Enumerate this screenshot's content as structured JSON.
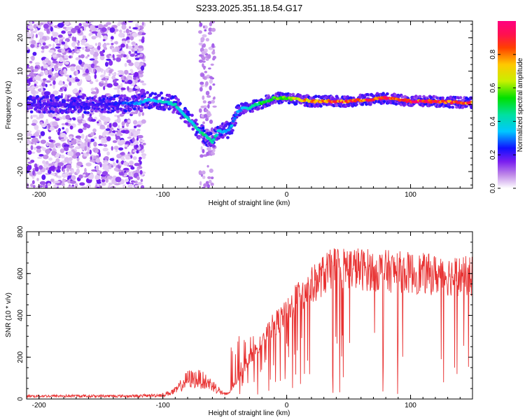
{
  "figure": {
    "title": "S233.2025.351.18.54.G17"
  },
  "chart_data": [
    {
      "type": "heatmap",
      "title": "S233.2025.351.18.54.G17",
      "xlabel": "Height of straight line (km)",
      "ylabel": "Frequency (Hz)",
      "xlim": [
        -210,
        150
      ],
      "ylim": [
        -25,
        25
      ],
      "xticks": [
        -200,
        -100,
        0,
        100
      ],
      "yticks": [
        -20,
        -10,
        0,
        10,
        20
      ],
      "ridge": {
        "description_free": true,
        "x": [
          -210,
          -150,
          -120,
          -110,
          -100,
          -90,
          -80,
          -70,
          -60,
          -55,
          -50,
          -45,
          -40,
          -35,
          -30,
          -25,
          -20,
          -10,
          0,
          20,
          50,
          80,
          100,
          120,
          150
        ],
        "y": [
          0,
          0,
          0.5,
          1.5,
          1,
          0,
          -4,
          -8,
          -11,
          -8,
          -8,
          -7,
          -2,
          -1,
          -1,
          0,
          0.5,
          2,
          2,
          1,
          1,
          2,
          1,
          1,
          0.5
        ],
        "amplitude": [
          0.2,
          0.2,
          0.3,
          0.35,
          0.4,
          0.4,
          0.4,
          0.45,
          0.45,
          0.4,
          0.35,
          0.35,
          0.3,
          0.35,
          0.4,
          0.45,
          0.5,
          0.55,
          0.6,
          0.8,
          0.85,
          0.9,
          0.9,
          0.9,
          0.85
        ]
      },
      "colorbar": {
        "label": "Normalized spectral amplitude",
        "ticks": [
          0.0,
          0.2,
          0.4,
          0.6,
          0.8
        ],
        "range": [
          0,
          1
        ]
      }
    },
    {
      "type": "line",
      "xlabel": "Height of straight line (km)",
      "ylabel": "SNR (10 * v/v)",
      "xlim": [
        -210,
        150
      ],
      "ylim": [
        0,
        800
      ],
      "xticks": [
        -200,
        -100,
        0,
        100
      ],
      "yticks": [
        0,
        200,
        400,
        600,
        800
      ],
      "color": "#e83232",
      "envelope": {
        "x": [
          -210,
          -120,
          -100,
          -90,
          -80,
          -70,
          -60,
          -50,
          -45,
          -40,
          -30,
          -20,
          -10,
          0,
          10,
          20,
          30,
          40,
          50,
          60,
          80,
          100,
          120,
          150
        ],
        "y": [
          15,
          15,
          20,
          40,
          100,
          100,
          70,
          20,
          40,
          100,
          220,
          300,
          400,
          450,
          550,
          600,
          660,
          700,
          700,
          690,
          680,
          670,
          660,
          650
        ]
      }
    }
  ]
}
